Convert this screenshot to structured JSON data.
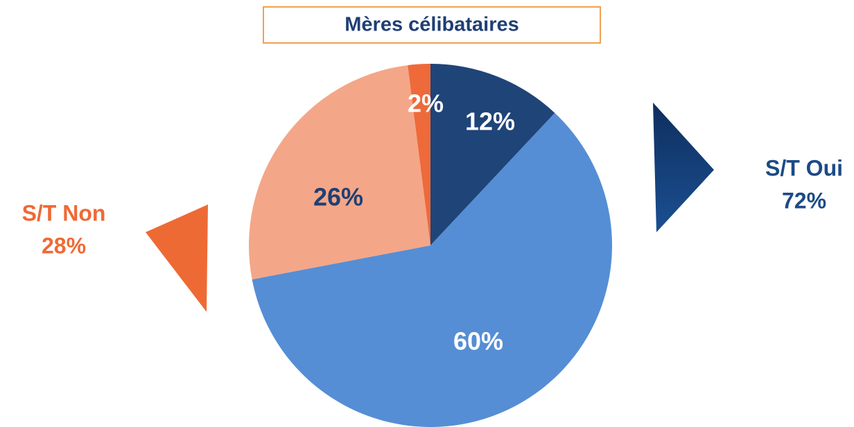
{
  "chart_data": {
    "type": "pie",
    "title": "Mères célibataires",
    "categories": [
      null,
      null,
      null,
      null
    ],
    "values": [
      12,
      60,
      26,
      2
    ],
    "value_labels": [
      "12%",
      "60%",
      "26%",
      "2%"
    ],
    "colors": [
      "#1f4478",
      "#558ed5",
      "#f4a688",
      "#ee6a3a"
    ],
    "subtotals": [
      {
        "name": "S/T Oui",
        "value": 72,
        "value_label": "72%",
        "color": "#1b4a86"
      },
      {
        "name": "S/T Non",
        "value": 28,
        "value_label": "28%",
        "color": "#ee6a35"
      }
    ]
  }
}
